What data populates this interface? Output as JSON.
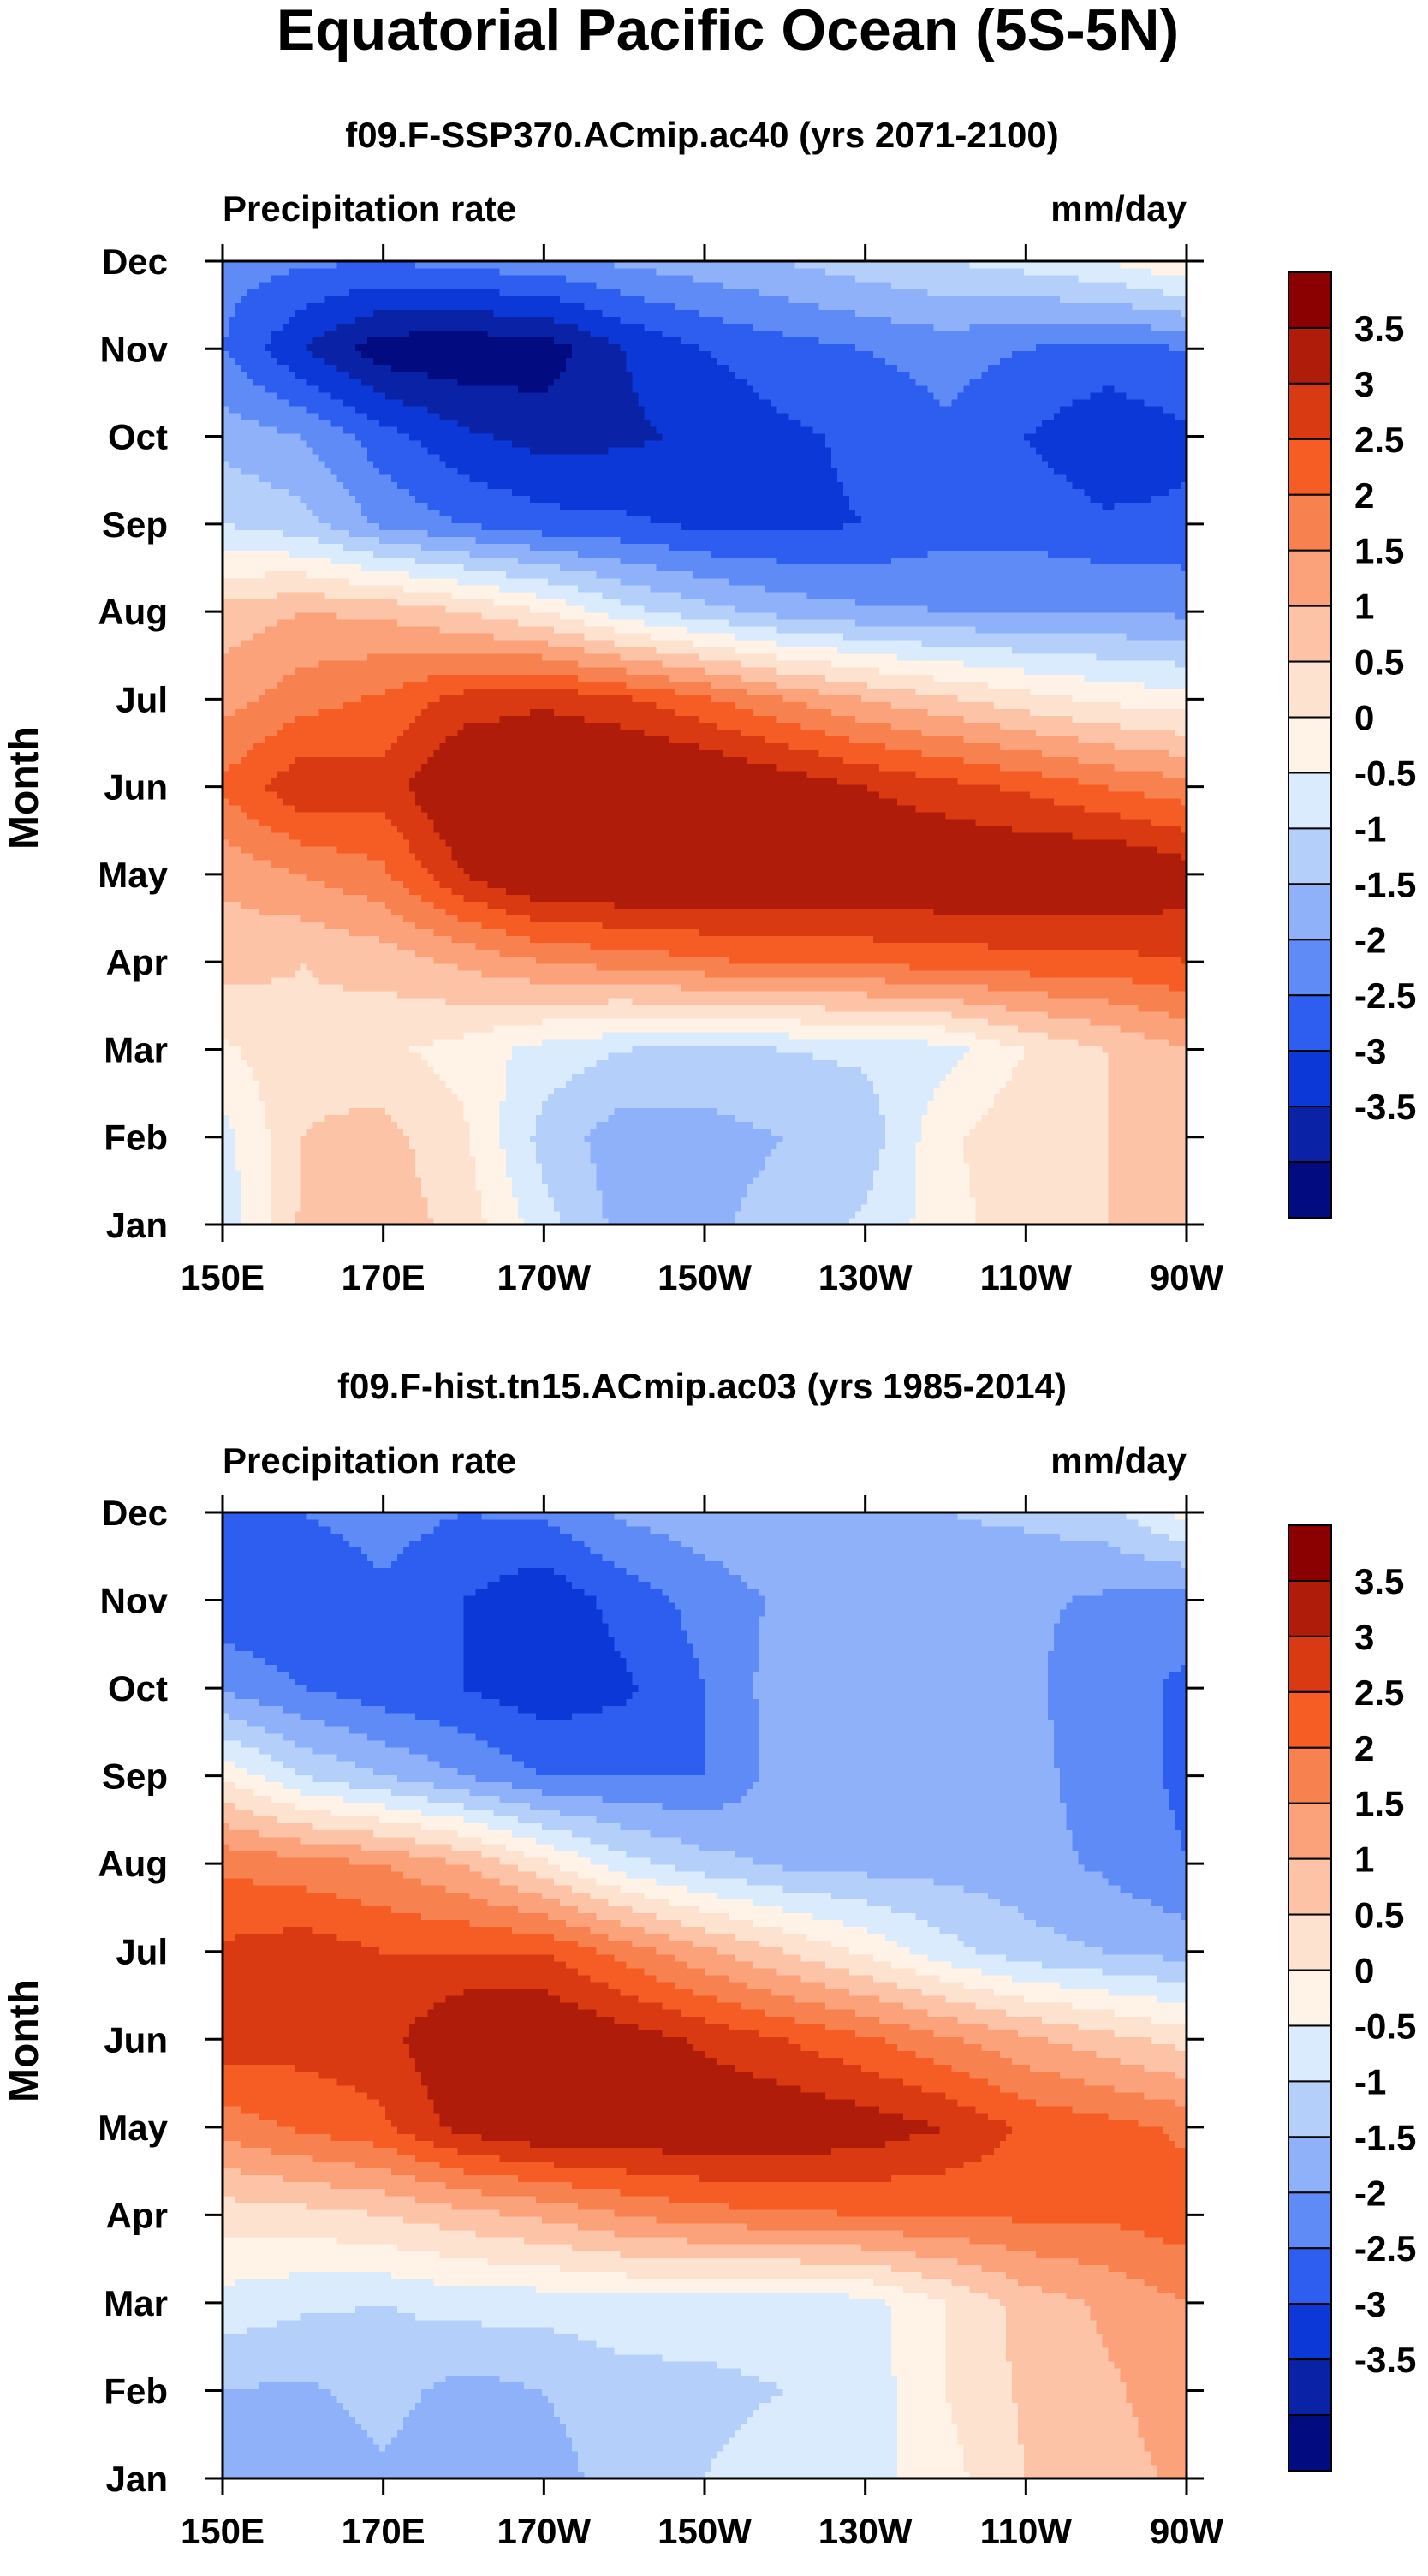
{
  "figure_title": "Equatorial Pacific Ocean (5S-5N)",
  "chart_data": [
    {
      "type": "heatmap",
      "title": "f09.F-SSP370.ACmip.ac40 (yrs 2071-2100)",
      "left_string": "Precipitation rate",
      "right_string": "mm/day",
      "xlabel": "",
      "ylabel": "Month",
      "xlim": [
        150,
        270
      ],
      "x_ticks": [
        150,
        170,
        190,
        210,
        230,
        250,
        270
      ],
      "x_tick_labels": [
        "150E",
        "170E",
        "170W",
        "150W",
        "130W",
        "110W",
        "90W"
      ],
      "y_tick_labels": [
        "Jan",
        "Feb",
        "Mar",
        "Apr",
        "May",
        "Jun",
        "Jul",
        "Aug",
        "Sep",
        "Oct",
        "Nov",
        "Dec"
      ],
      "colorbar": {
        "labels": [
          "3.5",
          "3",
          "2.5",
          "2",
          "1.5",
          "1",
          "0.5",
          "0",
          "-0.5",
          "-1",
          "-1.5",
          "-2",
          "-2.5",
          "-3",
          "-3.5"
        ],
        "colors": [
          "#8b0000",
          "#b01c0a",
          "#d93a12",
          "#f55d25",
          "#f7814f",
          "#fba27b",
          "#fcc3a6",
          "#fde3cf",
          "#fff2e6",
          "#d9ebfc",
          "#b5cffb",
          "#8fb1fa",
          "#5f8bf6",
          "#2e5ef0",
          "#0c38d8",
          "#0a22a6",
          "#020b80"
        ]
      },
      "values": [
        [
          -0.3,
          1.1,
          1.3,
          0.8,
          -0.3,
          -1.2,
          -1.1,
          -0.8,
          -0.4,
          0.3,
          0.8,
          1.0,
          1.3
        ],
        [
          -0.2,
          1.0,
          1.2,
          0.6,
          -0.7,
          -1.3,
          -1.2,
          -1.0,
          -0.8,
          0.4,
          0.9,
          1.0,
          1.1
        ],
        [
          0.4,
          0.9,
          0.6,
          0.3,
          -0.2,
          -0.5,
          -0.6,
          -0.5,
          -0.4,
          -0.2,
          0.5,
          1.0,
          1.5
        ],
        [
          1.2,
          1.0,
          1.2,
          1.6,
          2.0,
          2.2,
          2.4,
          2.6,
          2.6,
          2.7,
          2.8,
          2.8,
          3.0
        ],
        [
          1.6,
          2.0,
          2.4,
          3.5,
          4.2,
          4.2,
          4.2,
          4.1,
          4.1,
          4.1,
          4.1,
          4.2,
          3.8
        ],
        [
          2.6,
          3.4,
          3.2,
          4.2,
          4.3,
          4.4,
          4.2,
          3.9,
          3.5,
          3.2,
          2.9,
          2.5,
          2.2
        ],
        [
          1.8,
          2.3,
          2.6,
          3.2,
          3.4,
          3.1,
          2.6,
          2.0,
          1.5,
          1.1,
          0.7,
          0.4,
          0.2
        ],
        [
          1.2,
          1.5,
          1.4,
          1.0,
          0.5,
          -0.3,
          -0.8,
          -1.2,
          -1.4,
          -1.5,
          -1.5,
          -1.5,
          -1.6
        ],
        [
          -0.5,
          -0.8,
          -1.6,
          -2.0,
          -2.3,
          -2.4,
          -2.6,
          -2.6,
          -2.5,
          -2.2,
          -2.2,
          -2.4,
          -2.4
        ],
        [
          -1.2,
          -1.5,
          -2.3,
          -2.9,
          -3.2,
          -3.1,
          -2.9,
          -2.6,
          -2.4,
          -2.1,
          -2.5,
          -2.9,
          -2.6
        ],
        [
          -2.0,
          -3.0,
          -3.8,
          -3.9,
          -3.8,
          -3.0,
          -2.5,
          -2.2,
          -2.0,
          -1.8,
          -2.0,
          -2.2,
          -2.0
        ],
        [
          -1.8,
          -1.9,
          -2.0,
          -1.8,
          -1.7,
          -1.4,
          -1.2,
          -1.0,
          -0.7,
          -0.5,
          -0.3,
          0.0,
          0.5
        ]
      ]
    },
    {
      "type": "heatmap",
      "title": "f09.F-hist.tn15.ACmip.ac03 (yrs 1985-2014)",
      "left_string": "Precipitation rate",
      "right_string": "mm/day",
      "xlabel": "",
      "ylabel": "Month",
      "xlim": [
        150,
        270
      ],
      "x_ticks": [
        150,
        170,
        190,
        210,
        230,
        250,
        270
      ],
      "x_tick_labels": [
        "150E",
        "170E",
        "170W",
        "150W",
        "130W",
        "110W",
        "90W"
      ],
      "y_tick_labels": [
        "Jan",
        "Feb",
        "Mar",
        "Apr",
        "May",
        "Jun",
        "Jul",
        "Aug",
        "Sep",
        "Oct",
        "Nov",
        "Dec"
      ],
      "colorbar": {
        "labels": [
          "3.5",
          "3",
          "2.5",
          "2",
          "1.5",
          "1",
          "0.5",
          "0",
          "-0.5",
          "-1",
          "-1.5",
          "-2",
          "-2.5",
          "-3",
          "-3.5"
        ],
        "colors": [
          "#8b0000",
          "#b01c0a",
          "#d93a12",
          "#f55d25",
          "#f7814f",
          "#fba27b",
          "#fcc3a6",
          "#fde3cf",
          "#fff2e6",
          "#d9ebfc",
          "#b5cffb",
          "#8fb1fa",
          "#5f8bf6",
          "#2e5ef0",
          "#0c38d8",
          "#0a22a6",
          "#020b80"
        ]
      },
      "values": [
        [
          -1.2,
          -1.3,
          -1.1,
          -1.4,
          -1.2,
          -0.8,
          -0.5,
          -0.3,
          -0.2,
          0.3,
          1.0,
          1.3,
          1.6
        ],
        [
          -1.0,
          -1.1,
          -0.8,
          -1.2,
          -1.0,
          -0.7,
          -0.6,
          -0.5,
          -0.3,
          0.5,
          1.1,
          1.4,
          1.8
        ],
        [
          -0.2,
          -0.4,
          -0.5,
          -0.3,
          -0.3,
          -0.2,
          -0.3,
          -0.3,
          -0.2,
          0.5,
          1.2,
          1.6,
          2.0
        ],
        [
          0.7,
          0.8,
          1.0,
          1.3,
          1.6,
          2.0,
          2.3,
          2.4,
          2.5,
          2.5,
          2.6,
          2.6,
          2.8
        ],
        [
          2.2,
          2.6,
          2.9,
          3.7,
          4.0,
          4.0,
          4.0,
          4.0,
          3.8,
          3.5,
          2.9,
          2.7,
          2.4
        ],
        [
          3.3,
          3.2,
          3.3,
          4.1,
          4.1,
          3.8,
          3.4,
          3.0,
          2.6,
          2.1,
          1.6,
          1.2,
          0.8
        ],
        [
          3.1,
          3.3,
          3.0,
          3.0,
          3.0,
          2.3,
          1.6,
          1.0,
          0.4,
          -0.3,
          -0.8,
          -1.0,
          -1.2
        ],
        [
          2.4,
          2.2,
          2.0,
          1.5,
          0.6,
          -0.3,
          -0.8,
          -1.1,
          -1.2,
          -1.2,
          -1.3,
          -1.6,
          -2.0
        ],
        [
          0.4,
          -0.5,
          -1.0,
          -1.5,
          -2.0,
          -2.0,
          -2.0,
          -1.3,
          -1.2,
          -1.2,
          -1.3,
          -1.8,
          -2.1
        ],
        [
          -1.6,
          -2.0,
          -2.3,
          -2.5,
          -2.8,
          -2.6,
          -2.0,
          -1.2,
          -1.1,
          -1.1,
          -1.4,
          -1.8,
          -2.1
        ],
        [
          -2.4,
          -2.4,
          -2.1,
          -2.5,
          -2.9,
          -2.3,
          -1.8,
          -1.4,
          -1.3,
          -1.3,
          -1.4,
          -1.6,
          -1.8
        ],
        [
          -2.1,
          -2.0,
          -1.8,
          -2.0,
          -1.9,
          -1.4,
          -1.2,
          -1.1,
          -1.1,
          -1.0,
          -0.9,
          -0.7,
          0.2
        ]
      ]
    }
  ]
}
